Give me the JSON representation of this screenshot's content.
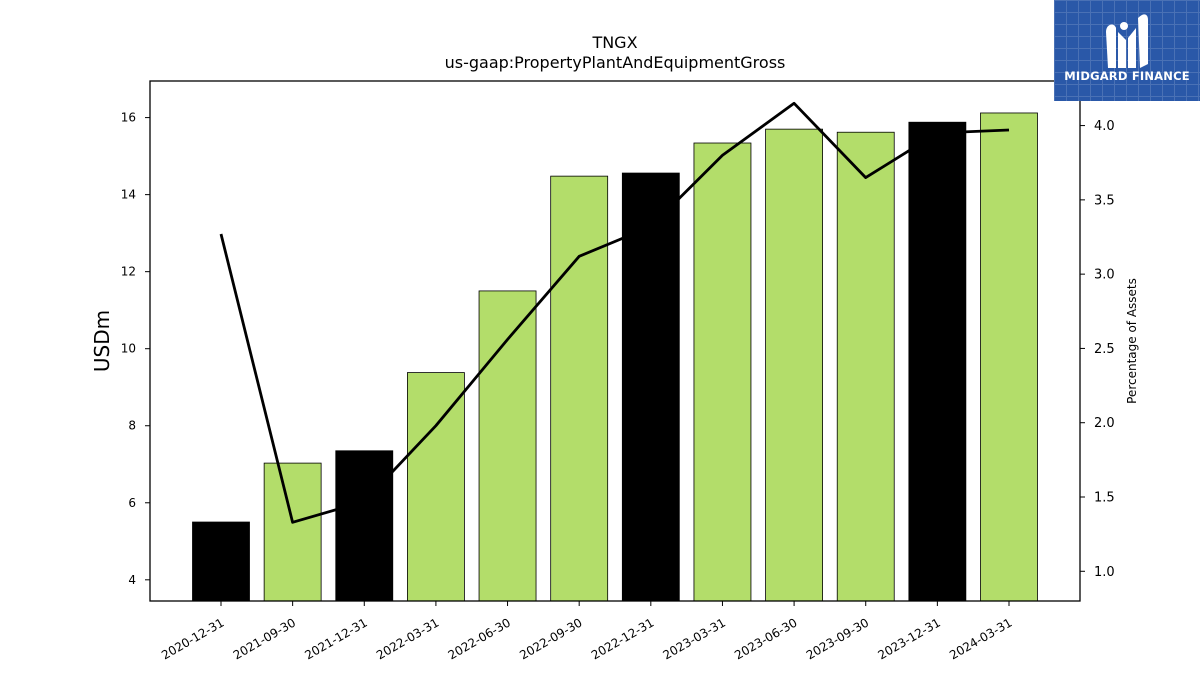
{
  "title": "TNGX",
  "subtitle": "us-gaap:PropertyPlantAndEquipmentGross",
  "logo": {
    "text": "MIDGARD FINANCE",
    "background": "#2a58a8"
  },
  "colors": {
    "bar_green": "#b3dd6a",
    "bar_black": "#000000",
    "line": "#000000"
  },
  "chart_data": {
    "type": "bar",
    "categories": [
      "2020-12-31",
      "2021-09-30",
      "2021-12-31",
      "2022-03-31",
      "2022-06-30",
      "2022-09-30",
      "2022-12-31",
      "2023-03-31",
      "2023-06-30",
      "2023-09-30",
      "2023-12-31",
      "2024-03-31"
    ],
    "series": [
      {
        "type": "bar",
        "axis": "left",
        "values": [
          5.5,
          7.03,
          7.35,
          9.38,
          11.5,
          14.48,
          14.56,
          15.34,
          15.7,
          15.62,
          15.88,
          16.12
        ],
        "bar_colors": [
          "#000000",
          "#b3dd6a",
          "#000000",
          "#b3dd6a",
          "#b3dd6a",
          "#b3dd6a",
          "#000000",
          "#b3dd6a",
          "#b3dd6a",
          "#b3dd6a",
          "#000000",
          "#b3dd6a"
        ]
      },
      {
        "type": "line",
        "axis": "right",
        "values": [
          3.27,
          1.33,
          1.47,
          1.98,
          2.56,
          3.12,
          3.32,
          3.8,
          4.15,
          3.65,
          3.95,
          3.97
        ]
      }
    ],
    "ylabel": "USDm",
    "y2label": "Percentage of Assets",
    "ylim": [
      3.45,
      16.95
    ],
    "y2lim": [
      0.8,
      4.3
    ],
    "yticks": [
      "4",
      "6",
      "8",
      "10",
      "12",
      "14",
      "16"
    ],
    "y2ticks": [
      "1.0",
      "1.5",
      "2.0",
      "2.5",
      "3.0",
      "3.5",
      "4.0"
    ],
    "grid": false,
    "legend": "none"
  }
}
